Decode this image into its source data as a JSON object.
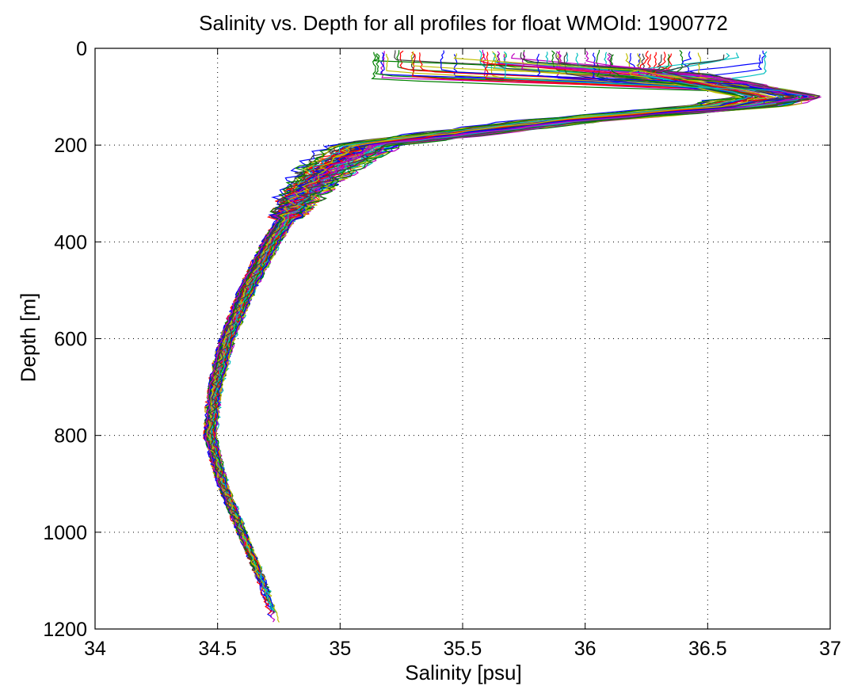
{
  "chart_data": {
    "type": "line",
    "title": "Salinity vs. Depth for all profiles for float WMOId: 1900772",
    "xlabel": "Salinity [psu]",
    "ylabel": "Depth [m]",
    "xlim": [
      34,
      37
    ],
    "ylim": [
      0,
      1200
    ],
    "y_reversed": true,
    "grid": "dotted",
    "legend": "none",
    "x_ticks": [
      "34",
      "34.5",
      "35",
      "35.5",
      "36",
      "36.5",
      "37"
    ],
    "y_ticks": [
      "0",
      "200",
      "400",
      "600",
      "800",
      "1000",
      "1200"
    ],
    "x_tick_values": [
      34,
      34.5,
      35,
      35.5,
      36,
      36.5,
      37
    ],
    "y_tick_values": [
      0,
      200,
      400,
      600,
      800,
      1000,
      1200
    ],
    "colors": [
      "#0000ff",
      "#008000",
      "#ff0000",
      "#00bfbf",
      "#bf00bf",
      "#bfbf00",
      "#404040"
    ],
    "series_count": 70,
    "representative_profile": {
      "depth": [
        5,
        50,
        80,
        100,
        120,
        150,
        200,
        250,
        300,
        400,
        500,
        600,
        700,
        800,
        900,
        1000,
        1100,
        1190
      ],
      "salinity": [
        36.2,
        36.3,
        36.6,
        36.8,
        36.6,
        35.9,
        35.1,
        34.95,
        34.85,
        34.72,
        34.62,
        34.54,
        34.49,
        34.47,
        34.52,
        34.6,
        34.68,
        34.74
      ]
    }
  }
}
